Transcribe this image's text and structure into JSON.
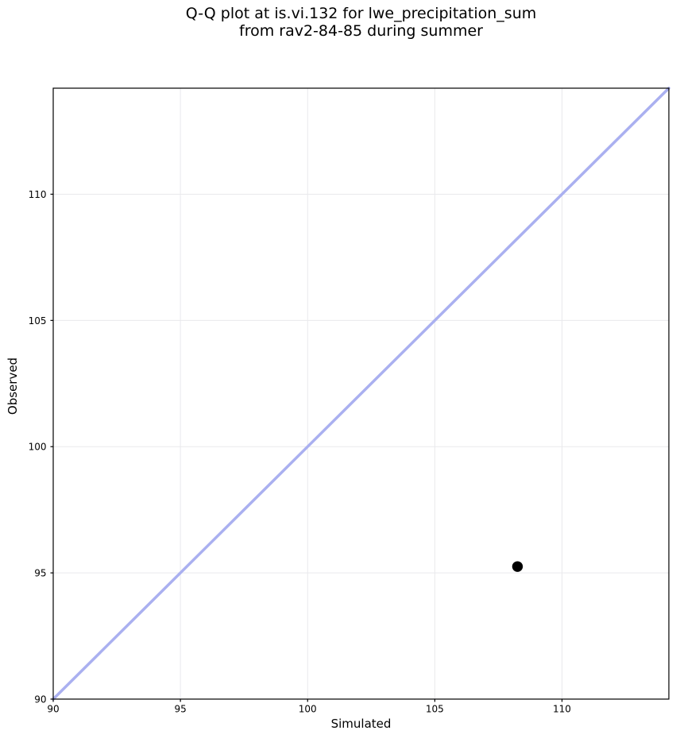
{
  "title": {
    "line1": "Q-Q plot at is.vi.132 for lwe_precipitation_sum",
    "line2": "from rav2-84-85 during summer"
  },
  "chart_data": {
    "type": "scatter",
    "title": "Q-Q plot at is.vi.132 for lwe_precipitation_sum\nfrom rav2-84-85 during summer",
    "xlabel": "Simulated",
    "ylabel": "Observed",
    "xlim": [
      90,
      114.2
    ],
    "ylim": [
      90,
      114.2
    ],
    "xticks": [
      90,
      95,
      100,
      105,
      110
    ],
    "yticks": [
      90,
      95,
      100,
      105,
      110
    ],
    "grid": true,
    "legend": false,
    "points": [
      {
        "x": 108.25,
        "y": 95.25
      }
    ],
    "identity_line": {
      "x0": 90,
      "y0": 90,
      "x1": 114.2,
      "y1": 114.2,
      "color": "#aab0f0",
      "width": 3.5
    },
    "point_style": {
      "color": "#000000",
      "radius": 6.7
    },
    "grid_color": "#e9e9ec",
    "axis_color": "#000000",
    "tick_label_color": "#000000",
    "background_color": "#ffffff"
  }
}
